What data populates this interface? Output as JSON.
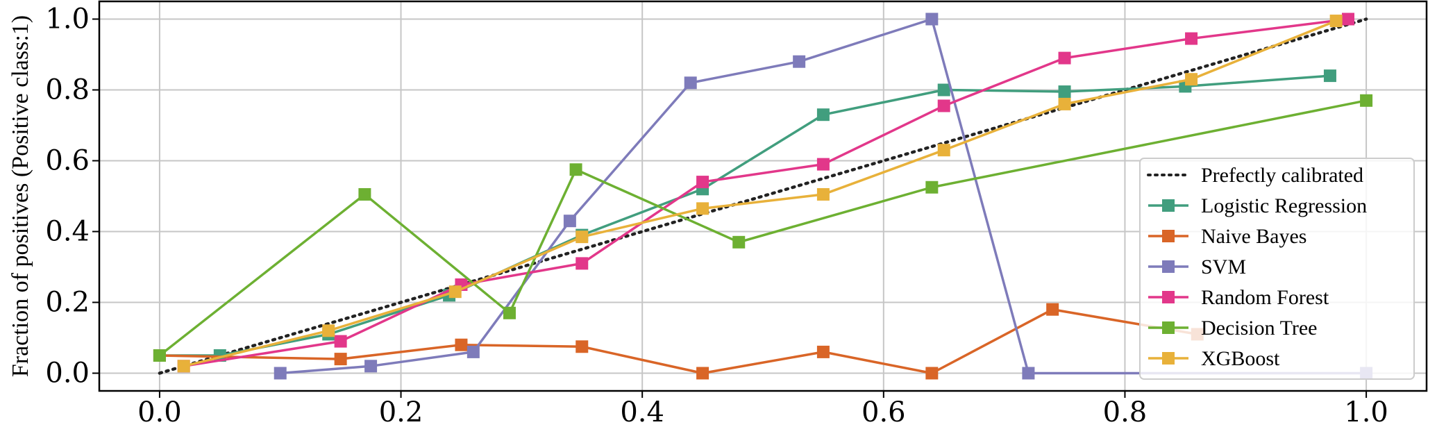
{
  "chart_data": {
    "type": "line",
    "title": "",
    "xlabel": "",
    "ylabel": "Fraction of positives (Positive class:1)",
    "xlim": [
      -0.05,
      1.05
    ],
    "ylim": [
      -0.05,
      1.05
    ],
    "xticks": [
      0.0,
      0.2,
      0.4,
      0.6,
      0.8,
      1.0
    ],
    "xtick_labels": [
      "0.0",
      "0.2",
      "0.4",
      "0.6",
      "0.8",
      "1.0"
    ],
    "yticks": [
      0.0,
      0.2,
      0.4,
      0.6,
      0.8,
      1.0
    ],
    "ytick_labels": [
      "0.0",
      "0.2",
      "0.4",
      "0.6",
      "0.8",
      "1.0"
    ],
    "grid": true,
    "legend_position": "right",
    "reference": {
      "name": "Prefectly calibrated",
      "x": [
        0,
        1
      ],
      "y": [
        0,
        1
      ],
      "style": "dotted",
      "color": "#222222"
    },
    "series": [
      {
        "name": "Logistic Regression",
        "color": "#419e7e",
        "x": [
          0.0,
          0.05,
          0.14,
          0.24,
          0.35,
          0.45,
          0.55,
          0.65,
          0.75,
          0.85,
          0.97
        ],
        "y": [
          0.05,
          0.05,
          0.11,
          0.22,
          0.39,
          0.52,
          0.73,
          0.8,
          0.795,
          0.81,
          0.84
        ]
      },
      {
        "name": "Naive Bayes",
        "color": "#d96527",
        "x": [
          0.0,
          0.15,
          0.25,
          0.35,
          0.45,
          0.55,
          0.64,
          0.74,
          0.86
        ],
        "y": [
          0.05,
          0.04,
          0.08,
          0.075,
          0.0,
          0.06,
          0.0,
          0.18,
          0.11
        ]
      },
      {
        "name": "SVM",
        "color": "#7e7bba",
        "x": [
          0.1,
          0.175,
          0.26,
          0.34,
          0.44,
          0.53,
          0.64,
          0.72,
          1.0
        ],
        "y": [
          0.0,
          0.02,
          0.06,
          0.43,
          0.82,
          0.88,
          1.0,
          0.0,
          0.0
        ]
      },
      {
        "name": "Random Forest",
        "color": "#e2378a",
        "x": [
          0.02,
          0.15,
          0.25,
          0.35,
          0.45,
          0.55,
          0.65,
          0.75,
          0.855,
          0.985
        ],
        "y": [
          0.02,
          0.09,
          0.25,
          0.31,
          0.54,
          0.59,
          0.755,
          0.89,
          0.945,
          1.0
        ]
      },
      {
        "name": "Decision Tree",
        "color": "#6db032",
        "x": [
          0.0,
          0.17,
          0.29,
          0.345,
          0.48,
          0.64,
          1.0
        ],
        "y": [
          0.05,
          0.505,
          0.17,
          0.575,
          0.37,
          0.525,
          0.77
        ]
      },
      {
        "name": "XGBoost",
        "color": "#e8b13a",
        "x": [
          0.02,
          0.14,
          0.245,
          0.35,
          0.45,
          0.55,
          0.65,
          0.75,
          0.855,
          0.975
        ],
        "y": [
          0.02,
          0.12,
          0.23,
          0.385,
          0.465,
          0.505,
          0.63,
          0.76,
          0.83,
          0.995
        ]
      }
    ]
  }
}
